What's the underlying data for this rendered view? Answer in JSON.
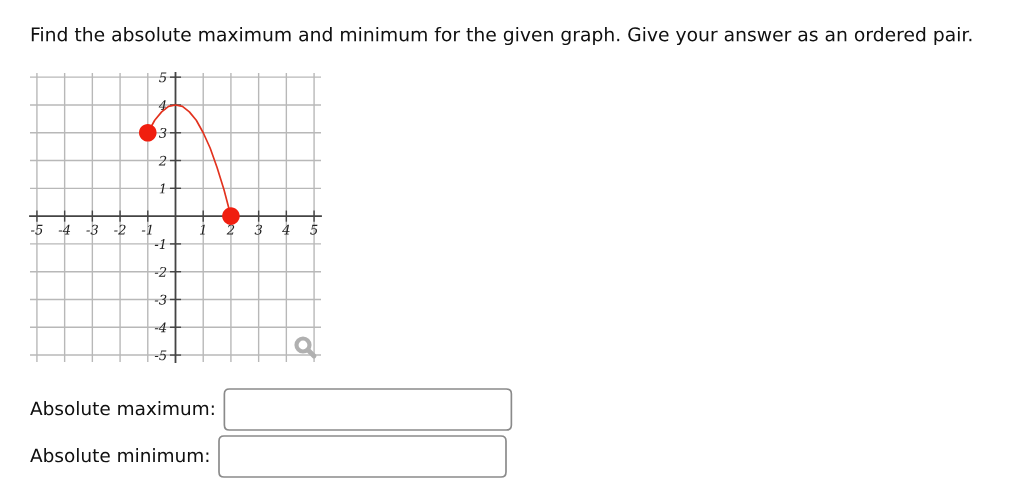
{
  "chart_data": {
    "type": "line",
    "title": "Find the absolute maximum and minimum for the given graph. Give your answer as an ordered pair.",
    "series": [
      {
        "color": "#e2321e",
        "x": [
          -1,
          -0.75,
          -0.5,
          -0.25,
          0,
          0.25,
          0.5,
          0.75,
          1,
          1.25,
          1.5,
          1.75,
          2
        ],
        "values": [
          3,
          3.45,
          3.75,
          3.95,
          4,
          3.95,
          3.75,
          3.45,
          3,
          2.45,
          1.75,
          0.95,
          0
        ],
        "marker": "none",
        "line_style": "solid"
      },
      {
        "type": "scatter",
        "color": "#f01e0f",
        "x": [
          -1,
          2
        ],
        "values": [
          3,
          0
        ],
        "marker": "circle"
      }
    ],
    "xlim": [
      -5.25,
      5.25
    ],
    "ylim": [
      -5.25,
      5.15
    ],
    "xticks": [
      -5,
      -4,
      -3,
      -2,
      -1,
      1,
      2,
      3,
      4,
      5
    ],
    "yticks": [
      -5,
      -4,
      -3,
      -2,
      -1,
      1,
      2,
      3,
      4,
      5
    ],
    "grid": true,
    "annotations": [
      "Absolute maximum:",
      "Absolute minimum:"
    ]
  }
}
